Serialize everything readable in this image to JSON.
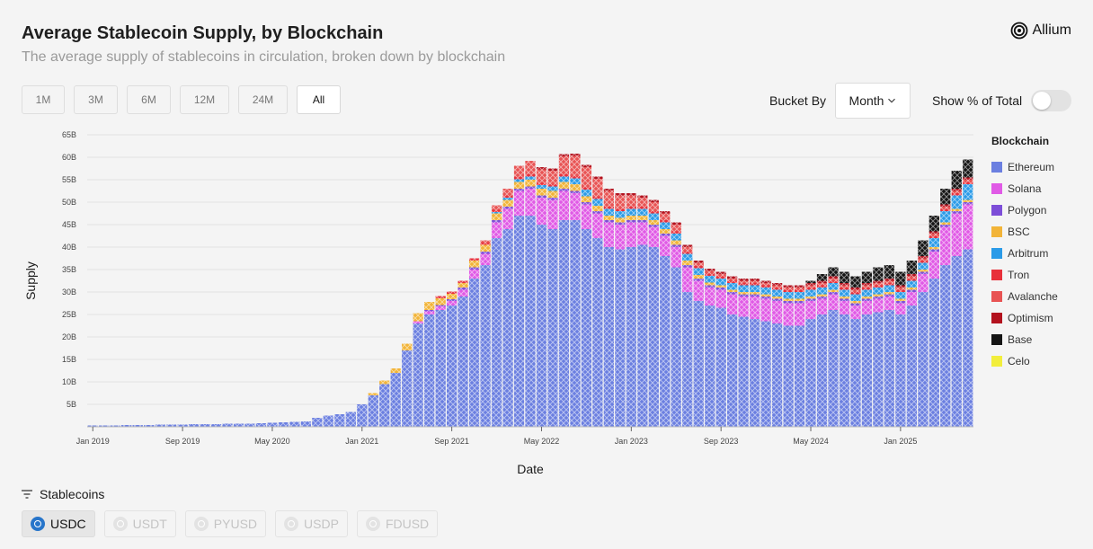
{
  "header": {
    "title": "Average Stablecoin Supply, by Blockchain",
    "subtitle": "The average supply of stablecoins in circulation, broken down by blockchain",
    "brand": "Allium"
  },
  "time_ranges": [
    {
      "label": "1M",
      "active": false
    },
    {
      "label": "3M",
      "active": false
    },
    {
      "label": "6M",
      "active": false
    },
    {
      "label": "12M",
      "active": false
    },
    {
      "label": "24M",
      "active": false
    },
    {
      "label": "All",
      "active": true
    }
  ],
  "controls": {
    "bucket_label": "Bucket By",
    "bucket_value": "Month",
    "percent_toggle_label": "Show % of Total",
    "percent_toggle_on": false
  },
  "stablecoins": {
    "header": "Stablecoins",
    "items": [
      {
        "label": "USDC",
        "active": true
      },
      {
        "label": "USDT",
        "active": false
      },
      {
        "label": "PYUSD",
        "active": false
      },
      {
        "label": "USDP",
        "active": false
      },
      {
        "label": "FDUSD",
        "active": false
      }
    ]
  },
  "chart_data": {
    "type": "bar",
    "stacked": true,
    "title": "Average Stablecoin Supply, by Blockchain",
    "xlabel": "Date",
    "ylabel": "Supply",
    "ylim": [
      0,
      65
    ],
    "yticks": [
      "5B",
      "10B",
      "15B",
      "20B",
      "25B",
      "30B",
      "35B",
      "40B",
      "45B",
      "50B",
      "55B",
      "60B",
      "65B"
    ],
    "ytick_values": [
      5,
      10,
      15,
      20,
      25,
      30,
      35,
      40,
      45,
      50,
      55,
      60,
      65
    ],
    "xticks": [
      "Jan 2019",
      "Sep 2019",
      "May 2020",
      "Jan 2021",
      "Sep 2021",
      "May 2022",
      "Jan 2023",
      "Sep 2023",
      "May 2024",
      "Jan 2025"
    ],
    "xtick_index": [
      0,
      8,
      16,
      24,
      32,
      40,
      48,
      56,
      64,
      72
    ],
    "legend_title": "Blockchain",
    "series": [
      {
        "name": "Ethereum",
        "color": "#6b7fe0",
        "values": [
          0.3,
          0.3,
          0.3,
          0.4,
          0.4,
          0.4,
          0.5,
          0.5,
          0.5,
          0.6,
          0.6,
          0.6,
          0.7,
          0.7,
          0.7,
          0.8,
          0.9,
          1.0,
          1.1,
          1.2,
          2.0,
          2.5,
          2.8,
          3.3,
          5.0,
          7.0,
          9.5,
          12.0,
          17.0,
          23.0,
          25.0,
          26.0,
          27.0,
          29.0,
          33.0,
          36.0,
          42.0,
          44.0,
          47.0,
          47.0,
          45.0,
          44.0,
          46.0,
          46.0,
          44.0,
          42.0,
          40.0,
          39.5,
          40.0,
          40.5,
          40.0,
          38.0,
          35.5,
          30.0,
          28.0,
          27.0,
          26.5,
          25.0,
          24.5,
          24.0,
          23.5,
          23.0,
          22.5,
          22.5,
          24.0,
          25.0,
          26.0,
          25.0,
          24.0,
          25.0,
          25.5,
          26.0,
          25.0,
          27.0,
          30.0,
          33.0,
          36.0,
          38.0,
          39.5
        ]
      },
      {
        "name": "Solana",
        "color": "#e05ae6",
        "values": [
          0,
          0,
          0,
          0,
          0,
          0,
          0,
          0,
          0,
          0,
          0,
          0,
          0,
          0,
          0,
          0,
          0,
          0,
          0,
          0,
          0,
          0,
          0,
          0,
          0,
          0,
          0,
          0,
          0,
          0.5,
          0.7,
          0.8,
          1.0,
          1.5,
          2.0,
          2.5,
          3.5,
          4.5,
          5.5,
          6.0,
          6.0,
          6.5,
          6.5,
          6.0,
          5.5,
          5.5,
          5.5,
          5.5,
          5.5,
          5.0,
          4.5,
          4.5,
          4.5,
          5.5,
          4.5,
          4.0,
          4.0,
          4.5,
          4.5,
          5.0,
          5.0,
          5.0,
          5.0,
          5.0,
          4.0,
          3.5,
          3.5,
          3.0,
          3.0,
          3.0,
          3.0,
          3.0,
          2.5,
          3.0,
          4.0,
          6.0,
          8.5,
          9.5,
          10.0
        ]
      },
      {
        "name": "Polygon",
        "color": "#7d4ed8",
        "values": [
          0,
          0,
          0,
          0,
          0,
          0,
          0,
          0,
          0,
          0,
          0,
          0,
          0,
          0,
          0,
          0,
          0,
          0,
          0,
          0,
          0,
          0,
          0,
          0,
          0,
          0,
          0,
          0,
          0,
          0,
          0.3,
          0.3,
          0.4,
          0.5,
          0.5,
          0.5,
          0.5,
          0.5,
          0.5,
          0.5,
          0.5,
          0.5,
          0.5,
          0.5,
          0.5,
          0.5,
          0.5,
          0.5,
          0.5,
          0.5,
          0.5,
          0.5,
          0.5,
          0.5,
          0.5,
          0.5,
          0.5,
          0.5,
          0.5,
          0.5,
          0.5,
          0.5,
          0.5,
          0.5,
          0.5,
          0.5,
          0.5,
          0.5,
          0.5,
          0.5,
          0.5,
          0.5,
          0.5,
          0.5,
          0.5,
          0.5,
          0.5,
          0.5,
          0.5
        ]
      },
      {
        "name": "BSC",
        "color": "#f2b438",
        "values": [
          0,
          0,
          0,
          0,
          0,
          0,
          0,
          0,
          0,
          0,
          0,
          0,
          0,
          0,
          0,
          0,
          0,
          0,
          0,
          0,
          0,
          0,
          0,
          0,
          0,
          0.5,
          0.8,
          1.0,
          1.5,
          1.8,
          1.8,
          1.5,
          1.2,
          1.0,
          1.5,
          1.5,
          1.5,
          1.5,
          1.5,
          1.5,
          1.5,
          1.5,
          1.5,
          1.5,
          1.3,
          1.2,
          1.0,
          1.0,
          1.0,
          1.0,
          1.0,
          1.0,
          1.0,
          1.0,
          0.8,
          0.6,
          0.5,
          0.5,
          0.5,
          0.5,
          0.5,
          0.5,
          0.5,
          0.5,
          0.5,
          0.5,
          0.5,
          0.5,
          0.5,
          0.5,
          0.5,
          0.5,
          0.5,
          0.5,
          0.5,
          0.5,
          0.5,
          0.5,
          0.5
        ]
      },
      {
        "name": "Arbitrum",
        "color": "#2b9be8",
        "values": [
          0,
          0,
          0,
          0,
          0,
          0,
          0,
          0,
          0,
          0,
          0,
          0,
          0,
          0,
          0,
          0,
          0,
          0,
          0,
          0,
          0,
          0,
          0,
          0,
          0,
          0,
          0,
          0,
          0,
          0,
          0,
          0,
          0,
          0,
          0,
          0,
          0.3,
          0.5,
          0.6,
          0.7,
          0.8,
          1.0,
          1.2,
          1.3,
          1.5,
          1.5,
          1.5,
          1.5,
          1.5,
          1.5,
          1.5,
          1.5,
          1.5,
          1.5,
          1.5,
          1.5,
          1.5,
          1.5,
          1.5,
          1.5,
          1.5,
          1.5,
          1.5,
          1.5,
          1.5,
          1.5,
          1.5,
          1.5,
          1.5,
          1.5,
          1.5,
          1.5,
          1.5,
          1.5,
          1.5,
          2.0,
          2.5,
          3.0,
          3.5
        ]
      },
      {
        "name": "Tron",
        "color": "#e8303a",
        "values": [
          0,
          0,
          0,
          0,
          0,
          0,
          0,
          0,
          0,
          0,
          0,
          0,
          0,
          0,
          0,
          0,
          0,
          0,
          0,
          0,
          0,
          0,
          0,
          0,
          0,
          0,
          0,
          0,
          0,
          0,
          0,
          0.5,
          0.5,
          0.5,
          0.5,
          0.5,
          0.5,
          0.5,
          0.5,
          0.5,
          0.5,
          0.5,
          0.5,
          0.5,
          0.5,
          0.5,
          0.5,
          0.5,
          0.5,
          0.5,
          0.5,
          0.5,
          0.5,
          0.5,
          0.5,
          0.5,
          0.5,
          0.5,
          0.5,
          0.5,
          0.5,
          0.5,
          0.5,
          0.5,
          0.5,
          0.5,
          0.5,
          0.5,
          0.5,
          0.5,
          0.5,
          0.5,
          0.5,
          0.5,
          0.5,
          0.5,
          0.5,
          0.5,
          0.5
        ]
      },
      {
        "name": "Avalanche",
        "color": "#e85454",
        "values": [
          0,
          0,
          0,
          0,
          0,
          0,
          0,
          0,
          0,
          0,
          0,
          0,
          0,
          0,
          0,
          0,
          0,
          0,
          0,
          0,
          0,
          0,
          0,
          0,
          0,
          0,
          0,
          0,
          0,
          0,
          0,
          0,
          0,
          0,
          0,
          0.5,
          1.0,
          1.5,
          2.5,
          3.0,
          3.0,
          3.0,
          4.0,
          4.5,
          4.5,
          4.0,
          3.5,
          3.0,
          2.5,
          2.0,
          2.0,
          1.5,
          1.5,
          1.0,
          0.7,
          0.6,
          0.5,
          0.5,
          0.5,
          0.5,
          0.5,
          0.5,
          0.5,
          0.5,
          0.5,
          0.5,
          0.5,
          0.5,
          0.5,
          0.5,
          0.5,
          0.5,
          0.5,
          0.5,
          0.5,
          0.5,
          0.5,
          0.5,
          0.5
        ]
      },
      {
        "name": "Optimism",
        "color": "#b3121e",
        "values": [
          0,
          0,
          0,
          0,
          0,
          0,
          0,
          0,
          0,
          0,
          0,
          0,
          0,
          0,
          0,
          0,
          0,
          0,
          0,
          0,
          0,
          0,
          0,
          0,
          0,
          0,
          0,
          0,
          0,
          0,
          0,
          0,
          0,
          0,
          0,
          0,
          0,
          0,
          0,
          0,
          0.5,
          0.5,
          0.5,
          0.5,
          0.5,
          0.5,
          0.5,
          0.5,
          0.5,
          0.5,
          0.5,
          0.5,
          0.5,
          0.5,
          0.5,
          0.5,
          0.5,
          0.5,
          0.5,
          0.5,
          0.5,
          0.5,
          0.5,
          0.5,
          0.5,
          0.5,
          0.5,
          0.5,
          0.5,
          0.5,
          0.5,
          0.5,
          0.5,
          0.5,
          0.5,
          0.5,
          0.5,
          0.5,
          0.5
        ]
      },
      {
        "name": "Base",
        "color": "#151515",
        "values": [
          0,
          0,
          0,
          0,
          0,
          0,
          0,
          0,
          0,
          0,
          0,
          0,
          0,
          0,
          0,
          0,
          0,
          0,
          0,
          0,
          0,
          0,
          0,
          0,
          0,
          0,
          0,
          0,
          0,
          0,
          0,
          0,
          0,
          0,
          0,
          0,
          0,
          0,
          0,
          0,
          0,
          0,
          0,
          0,
          0,
          0,
          0,
          0,
          0,
          0,
          0,
          0,
          0,
          0,
          0,
          0,
          0,
          0,
          0,
          0,
          0,
          0,
          0,
          0,
          0.5,
          1.5,
          2.0,
          2.5,
          2.5,
          2.5,
          3.0,
          3.0,
          3.0,
          3.0,
          3.5,
          3.5,
          3.5,
          4.0,
          4.0
        ]
      },
      {
        "name": "Celo",
        "color": "#f2ee3c",
        "values": [
          0,
          0,
          0,
          0,
          0,
          0,
          0,
          0,
          0,
          0,
          0,
          0,
          0,
          0,
          0,
          0,
          0,
          0,
          0,
          0,
          0,
          0,
          0,
          0,
          0,
          0,
          0,
          0,
          0,
          0,
          0,
          0,
          0,
          0,
          0,
          0,
          0,
          0,
          0,
          0,
          0,
          0,
          0,
          0,
          0,
          0,
          0,
          0,
          0,
          0,
          0,
          0,
          0,
          0,
          0,
          0,
          0,
          0,
          0,
          0,
          0,
          0,
          0,
          0,
          0,
          0,
          0,
          0,
          0,
          0,
          0,
          0,
          0,
          0,
          0,
          0,
          0,
          0,
          0
        ]
      }
    ]
  }
}
